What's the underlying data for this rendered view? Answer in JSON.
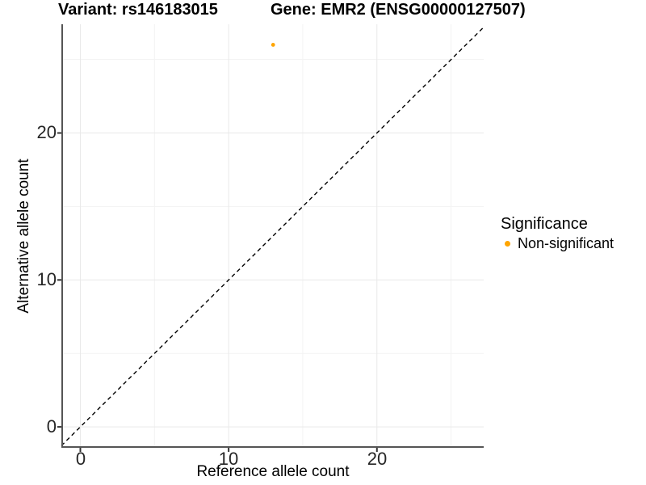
{
  "header": {
    "variant_title": "Variant: rs146183015",
    "gene_title": "Gene: EMR2 (ENSG00000127507)"
  },
  "legend": {
    "title": "Significance",
    "items": [
      {
        "label": "Non-significant",
        "color": "#FFA500"
      }
    ]
  },
  "colors": {
    "background": "#ffffff",
    "point": "#FFA500",
    "axis_line": "#555555",
    "tick_mark": "#333333",
    "grid_major": "#e9e9e9",
    "grid_minor": "#f3f3f3",
    "identity_line": "#000000"
  },
  "chart_data": {
    "type": "scatter",
    "title_left": "Variant: rs146183015",
    "title_right": "Gene: EMR2 (ENSG00000127507)",
    "xlabel": "Reference allele count",
    "ylabel": "Alternative allele count",
    "xlim": [
      -1.28,
      27.2
    ],
    "ylim": [
      -1.37,
      27.4
    ],
    "x_ticks": [
      0,
      10,
      20
    ],
    "y_ticks": [
      0,
      10,
      20
    ],
    "minor_gridlines": [
      5,
      15,
      25
    ],
    "grid": "major at ticks, minor between, light gray on white panel",
    "legend_position": "right",
    "legend_title": "Significance",
    "series": [
      {
        "name": "Non-significant",
        "color": "#FFA500",
        "points": [
          [
            13,
            26
          ]
        ]
      }
    ],
    "reference_line": {
      "description": "identity line y = x",
      "from": [
        -1.28,
        -1.28
      ],
      "to": [
        27.2,
        27.2
      ],
      "style": "dashed",
      "color": "#000000"
    }
  }
}
